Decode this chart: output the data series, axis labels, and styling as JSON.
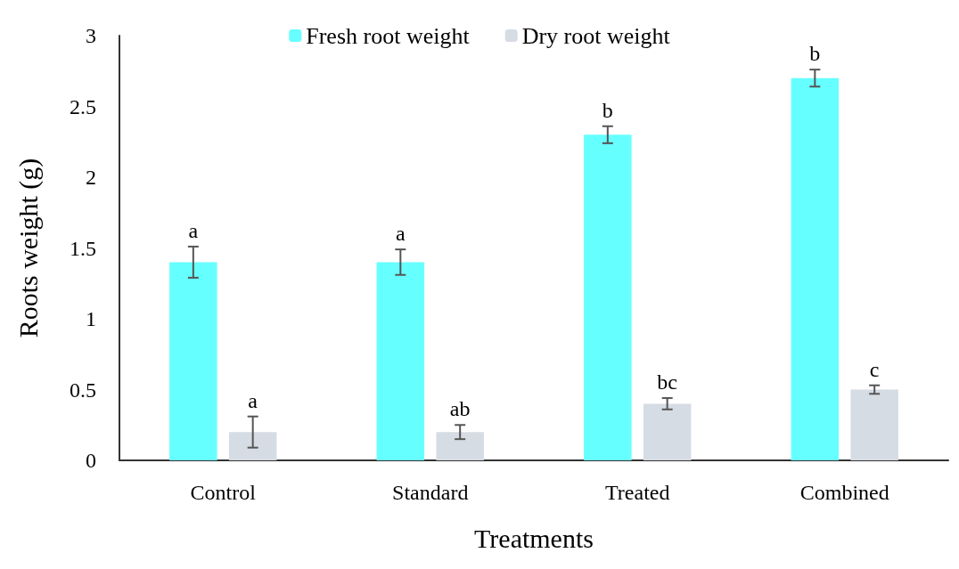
{
  "chart_data": {
    "type": "bar",
    "xlabel": "Treatments",
    "ylabel": "Roots weight (g)",
    "categories": [
      "Control",
      "Standard",
      "Treated",
      "Combined"
    ],
    "series": [
      {
        "name": "Fresh root weight",
        "color": "#66ffff",
        "values": [
          1.4,
          1.4,
          2.3,
          2.7
        ],
        "errors": [
          0.11,
          0.09,
          0.06,
          0.06
        ],
        "value_labels": [
          "a",
          "a",
          "b",
          "b"
        ]
      },
      {
        "name": "Dry root weight",
        "color": "#d6dce4",
        "values": [
          0.2,
          0.2,
          0.4,
          0.5
        ],
        "errors": [
          0.11,
          0.05,
          0.04,
          0.03
        ],
        "value_labels": [
          "a",
          "ab",
          "bc",
          "c"
        ]
      }
    ],
    "ylim": [
      0,
      3
    ],
    "yticks": [
      0,
      0.5,
      1,
      1.5,
      2,
      2.5,
      3
    ],
    "grid": false,
    "legend": "top"
  }
}
